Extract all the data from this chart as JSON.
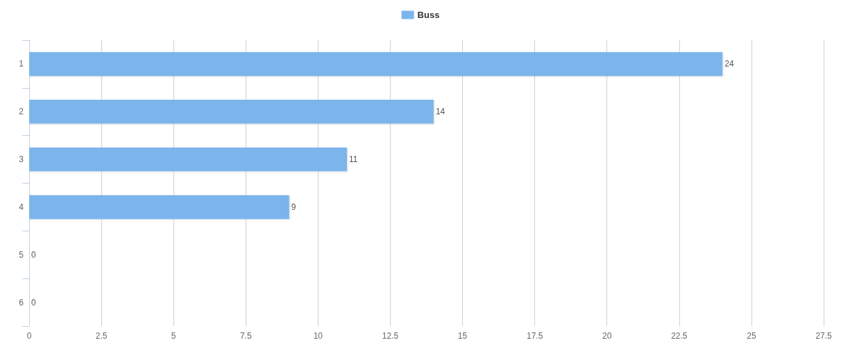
{
  "chart_data": {
    "type": "bar",
    "orientation": "horizontal",
    "categories": [
      "1",
      "2",
      "3",
      "4",
      "5",
      "6"
    ],
    "series": [
      {
        "name": "Buss",
        "color": "#7cb5ec",
        "values": [
          24,
          14,
          11,
          9,
          0,
          0
        ]
      }
    ],
    "xlim": [
      0,
      27.5
    ],
    "xticks": [
      0,
      2.5,
      5,
      7.5,
      10,
      12.5,
      15,
      17.5,
      20,
      22.5,
      25,
      27.5
    ],
    "grid": "x",
    "legend": "top",
    "data_labels": true
  }
}
